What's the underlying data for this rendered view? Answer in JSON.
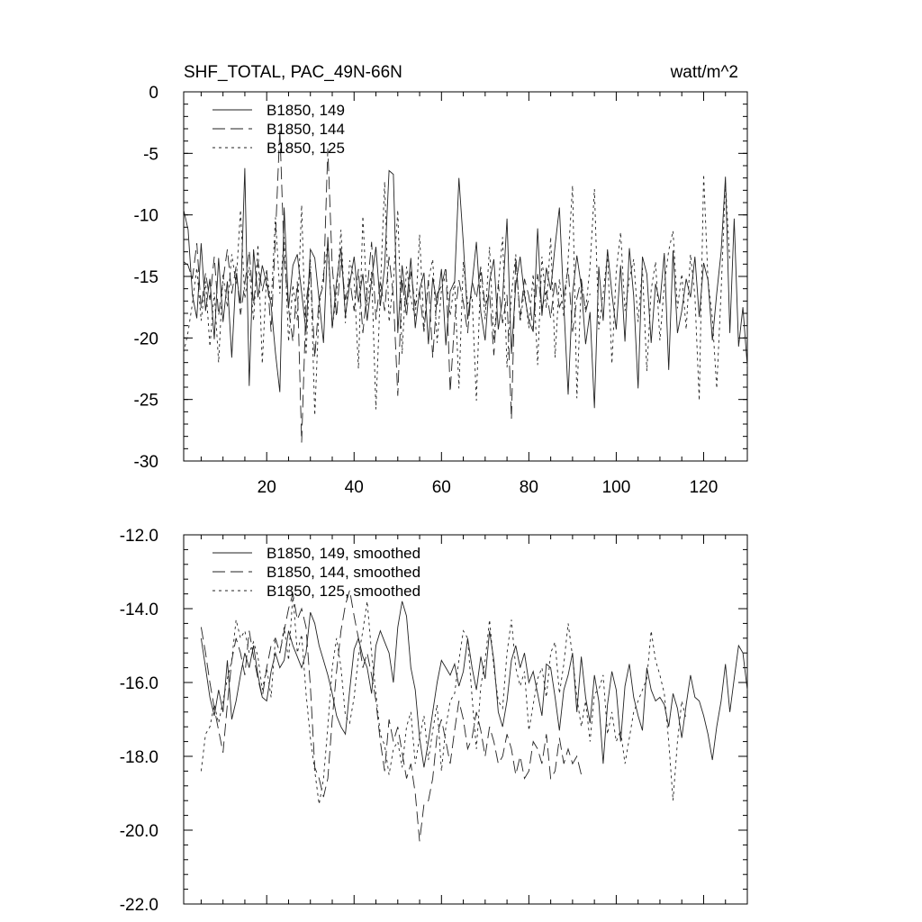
{
  "chart_data": [
    {
      "type": "line",
      "title": "SHF_TOTAL, PAC_49N-66N",
      "units": "watt/m^2",
      "xlim": [
        1,
        130
      ],
      "ylim": [
        -30,
        0
      ],
      "x_ticks": [
        20,
        40,
        60,
        80,
        100,
        120
      ],
      "y_ticks": [
        0,
        -5,
        -10,
        -15,
        -20,
        -25,
        -30
      ],
      "x_tick_labels": [
        "20",
        "40",
        "60",
        "80",
        "100",
        "120"
      ],
      "y_tick_labels": [
        "0",
        "-5",
        "-10",
        "-15",
        "-20",
        "-25",
        "-30"
      ],
      "legend_position": "top-left",
      "series": [
        {
          "name": "B1850, 149",
          "dash": "solid",
          "x_start": 1,
          "values": [
            -9.6,
            -11.2,
            -16.5,
            -18.4,
            -12.3,
            -17.8,
            -15.2,
            -20.1,
            -13.5,
            -18.7,
            -15.4,
            -21.6,
            -14.8,
            -17.2,
            -6.2,
            -23.9,
            -12.8,
            -16.7,
            -14.1,
            -15.6,
            -17.3,
            -21.2,
            -24.4,
            -9.4,
            -17.6,
            -14.1,
            -13.2,
            -16.3,
            -19.5,
            -12.8,
            -13.5,
            -16.9,
            -20.4,
            -11.8,
            -19.2,
            -15.4,
            -12.7,
            -18.2,
            -15.6,
            -13.4,
            -17.1,
            -14.8,
            -18.6,
            -15.3,
            -12.6,
            -17.4,
            -14.2,
            -6.4,
            -6.7,
            -19.6,
            -14.1,
            -17.3,
            -13.5,
            -19.2,
            -16.1,
            -14.7,
            -20.5,
            -15.1,
            -17.3,
            -14.4,
            -20.6,
            -16.2,
            -15.4,
            -7.0,
            -12.3,
            -18.5,
            -15.6,
            -12.2,
            -17.9,
            -20.2,
            -15.4,
            -13.6,
            -19.3,
            -16.8,
            -10.3,
            -21.3,
            -15.7,
            -13.4,
            -16.5,
            -18.6,
            -19.5,
            -11.1,
            -18.2,
            -14.3,
            -16.1,
            -12.5,
            -9.4,
            -17.3,
            -24.6,
            -16.4,
            -13.3,
            -15.8,
            -20.5,
            -17.9,
            -25.7,
            -14.2,
            -18.6,
            -12.8,
            -16.4,
            -19.3,
            -14.1,
            -20.3,
            -12.7,
            -16.6,
            -24.1,
            -13.4,
            -14.8,
            -20.4,
            -15.6,
            -17.2,
            -13.1,
            -22.6,
            -12.9,
            -19.6,
            -17.8,
            -15.2,
            -16.7,
            -13.4,
            -18.3,
            -13.9,
            -15.3,
            -20.2,
            -16.4,
            -13.0,
            -6.9,
            -19.6,
            -10.3,
            -20.7,
            -17.5,
            -22.3
          ]
        },
        {
          "name": "B1850, 144",
          "dash": "dash",
          "x_start": 1,
          "values": [
            -13.8,
            -14.1,
            -15.2,
            -12.3,
            -17.6,
            -14.7,
            -16.9,
            -13.4,
            -18.2,
            -15.3,
            -12.8,
            -16.4,
            -14.2,
            -18.1,
            -15.6,
            -12.9,
            -17.3,
            -13.8,
            -16.2,
            -14.5,
            -19.5,
            -11.8,
            -3.0,
            -13.5,
            -17.6,
            -20.3,
            -15.4,
            -28.5,
            -17.2,
            -14.3,
            -21.6,
            -16.8,
            -15.7,
            -4.6,
            -14.2,
            -18.3,
            -13.6,
            -16.9,
            -15.2,
            -17.8,
            -14.4,
            -19.6,
            -16.1,
            -12.2,
            -18.5,
            -15.3,
            -17.8,
            -13.4,
            -16.6,
            -24.7,
            -15.2,
            -18.3,
            -14.6,
            -17.4,
            -16.2,
            -19.5,
            -15.3,
            -21.6,
            -16.4,
            -15.8,
            -14.2,
            -24.4,
            -18.6,
            -15.3,
            -17.1,
            -19.6,
            -15.4,
            -16.8,
            -14.2,
            -17.5,
            -16.3,
            -21.4,
            -15.6,
            -18.8,
            -16.5,
            -26.6,
            -13.5,
            -18.3,
            -15.2,
            -16.6,
            -19.3,
            -14.8,
            -17.6,
            -16.2,
            -18.4,
            -15.3,
            -17.5,
            -16.6,
            -14.3,
            -19.5,
            -16.8,
            -15.2,
            -17.9,
            -16.4
          ]
        },
        {
          "name": "B1850, 125",
          "dash": "dot",
          "x_start": 1,
          "values": [
            -21.2,
            -19.5,
            -17.2,
            -14.3,
            -18.6,
            -15.4,
            -20.7,
            -16.3,
            -22.0,
            -14.8,
            -17.5,
            -13.2,
            -15.6,
            -9.6,
            -16.8,
            -14.2,
            -18.6,
            -12.4,
            -22.1,
            -14.7,
            -17.3,
            -10.2,
            -16.4,
            -11.8,
            -20.3,
            -15.7,
            -18.6,
            -9.2,
            -21.4,
            -13.6,
            -26.3,
            -17.5,
            -14.8,
            -12.3,
            -19.2,
            -16.4,
            -11.2,
            -18.8,
            -13.7,
            -15.2,
            -22.5,
            -10.1,
            -17.4,
            -14.6,
            -25.8,
            -16.2,
            -7.3,
            -18.7,
            -15.4,
            -9.6,
            -21.3,
            -14.2,
            -16.8,
            -18.4,
            -11.6,
            -19.2,
            -15.3,
            -13.6,
            -20.4,
            -16.1,
            -14.8,
            -18.2,
            -15.4,
            -24.1,
            -13.8,
            -17.2,
            -16.6,
            -25.1,
            -14.3,
            -18.5,
            -12.6,
            -20.2,
            -15.7,
            -11.8,
            -22.4,
            -16.5,
            -13.2,
            -18.7,
            -16.1,
            -19.2,
            -14.8,
            -22.2,
            -13.4,
            -17.6,
            -11.8,
            -21.6,
            -15.2,
            -18.3,
            -13.6,
            -7.6,
            -24.9,
            -15.4,
            -17.8,
            -14.2,
            -7.9,
            -19.3,
            -16.4,
            -13.2,
            -22.1,
            -14.6,
            -11.4,
            -17.8,
            -15.2,
            -13.6,
            -18.7,
            -14.3,
            -22.7,
            -16.1,
            -13.8,
            -20.2,
            -15.7,
            -12.9,
            -11.3,
            -17.6,
            -14.8,
            -19.3,
            -13.2,
            -16.6,
            -25.1,
            -6.7,
            -15.3,
            -18.4,
            -24.1,
            -16.2,
            -7.4,
            -13.8
          ]
        }
      ]
    },
    {
      "type": "line",
      "xlim": [
        1,
        130
      ],
      "ylim": [
        -22,
        -12
      ],
      "x_ticks": [
        20,
        40,
        60,
        80,
        100,
        120
      ],
      "y_ticks": [
        -12,
        -14,
        -16,
        -18,
        -20,
        -22
      ],
      "y_tick_labels": [
        "-12.0",
        "-14.0",
        "-16.0",
        "-18.0",
        "-20.0",
        "-22.0"
      ],
      "legend_position": "top-left",
      "series": [
        {
          "name": "B1850, 149, smoothed",
          "dash": "solid",
          "x_start": 5,
          "values": [
            -14.8,
            -15.6,
            -16.4,
            -16.9,
            -16.2,
            -16.8,
            -15.4,
            -17.0,
            -16.5,
            -15.8,
            -15.2,
            -15.6,
            -15.0,
            -15.8,
            -16.4,
            -16.5,
            -15.7,
            -15.2,
            -15.6,
            -15.4,
            -14.6,
            -15.0,
            -15.3,
            -15.6,
            -15.2,
            -14.1,
            -14.4,
            -15.0,
            -15.4,
            -15.8,
            -16.3,
            -16.9,
            -17.2,
            -17.4,
            -16.2,
            -15.1,
            -14.8,
            -15.3,
            -15.6,
            -16.3,
            -15.0,
            -14.6,
            -14.9,
            -15.2,
            -16.0,
            -14.5,
            -13.8,
            -14.2,
            -15.6,
            -16.2,
            -17.5,
            -18.3,
            -17.6,
            -16.8,
            -16.0,
            -15.4,
            -15.6,
            -15.8,
            -15.5,
            -16.1,
            -15.7,
            -14.8,
            -15.6,
            -16.2,
            -15.3,
            -15.9,
            -14.6,
            -15.4,
            -16.8,
            -17.2,
            -16.5,
            -15.4,
            -15.0,
            -15.6,
            -15.2,
            -16.0,
            -15.7,
            -16.3,
            -16.9,
            -15.5,
            -15.6,
            -16.4,
            -17.3,
            -16.2,
            -15.8,
            -15.2,
            -16.8,
            -15.3,
            -16.4,
            -17.1,
            -15.8,
            -16.5,
            -18.2,
            -16.6,
            -15.7,
            -16.2,
            -17.6,
            -16.1,
            -15.5,
            -16.4,
            -16.9,
            -17.3,
            -15.6,
            -16.2,
            -16.5,
            -16.4,
            -16.6,
            -17.2,
            -16.3,
            -16.7,
            -17.5,
            -16.6,
            -15.8,
            -16.4,
            -16.5,
            -16.9,
            -17.4,
            -18.1,
            -17.2,
            -16.5,
            -15.5,
            -16.8,
            -15.9,
            -15.0,
            -15.2,
            -16.2
          ]
        },
        {
          "name": "B1850, 144, smoothed",
          "dash": "dash",
          "x_start": 5,
          "values": [
            -14.5,
            -15.2,
            -16.0,
            -16.7,
            -17.3,
            -17.9,
            -16.6,
            -15.4,
            -14.8,
            -15.2,
            -15.8,
            -14.6,
            -15.3,
            -15.9,
            -16.4,
            -15.6,
            -15.0,
            -14.8,
            -15.2,
            -14.6,
            -14.0,
            -13.6,
            -14.3,
            -14.0,
            -14.5,
            -16.1,
            -18.3,
            -18.6,
            -19.1,
            -18.6,
            -17.0,
            -15.7,
            -14.6,
            -13.9,
            -13.5,
            -14.2,
            -14.8,
            -15.6,
            -15.2,
            -15.8,
            -16.5,
            -17.6,
            -18.4,
            -17.0,
            -17.6,
            -17.2,
            -17.9,
            -18.6,
            -18.2,
            -19.0,
            -20.3,
            -19.3,
            -19.2,
            -18.6,
            -17.4,
            -17.0,
            -17.6,
            -18.2,
            -17.3,
            -16.5,
            -17.0,
            -17.8,
            -17.5,
            -16.8,
            -17.3,
            -18.0,
            -17.2,
            -17.6,
            -18.2,
            -18.0,
            -17.4,
            -17.8,
            -18.5,
            -18.0,
            -18.6,
            -18.4,
            -17.6,
            -17.8,
            -18.2,
            -17.4,
            -18.6,
            -18.4,
            -17.5,
            -18.2,
            -17.8,
            -18.2,
            -18.0,
            -18.5
          ]
        },
        {
          "name": "B1850, 125, smoothed",
          "dash": "dot",
          "x_start": 5,
          "values": [
            -18.4,
            -17.4,
            -17.2,
            -16.6,
            -17.1,
            -16.5,
            -15.9,
            -15.4,
            -14.3,
            -14.8,
            -14.6,
            -15.2,
            -14.9,
            -15.3,
            -16.2,
            -15.6,
            -16.4,
            -14.8,
            -15.2,
            -14.5,
            -15.4,
            -13.6,
            -15.2,
            -14.7,
            -16.3,
            -17.5,
            -18.4,
            -19.3,
            -18.6,
            -17.2,
            -15.6,
            -14.8,
            -15.6,
            -16.9,
            -17.1,
            -16.4,
            -15.3,
            -14.6,
            -13.8,
            -15.2,
            -16.3,
            -17.4,
            -17.7,
            -18.5,
            -17.8,
            -17.6,
            -18.3,
            -17.2,
            -16.8,
            -18.2,
            -17.5,
            -16.9,
            -18.1,
            -17.3,
            -16.6,
            -18.4,
            -17.2,
            -16.5,
            -16.3,
            -15.4,
            -14.6,
            -14.8,
            -16.4,
            -17.8,
            -16.1,
            -15.4,
            -14.3,
            -15.6,
            -16.5,
            -16.7,
            -15.2,
            -14.3,
            -15.6,
            -16.1,
            -15.7,
            -17.3,
            -16.6,
            -15.9,
            -15.6,
            -16.4,
            -15.2,
            -14.9,
            -16.3,
            -15.5,
            -14.4,
            -15.3,
            -16.4,
            -17.2,
            -16.5,
            -17.6,
            -16.3,
            -16.2,
            -15.8,
            -17.4,
            -16.8,
            -17.6,
            -17.3,
            -18.2,
            -17.5,
            -16.8,
            -16.5,
            -16.2,
            -15.9,
            -14.6,
            -15.4,
            -15.8,
            -16.3,
            -17.6,
            -19.2,
            -17.6,
            -16.5,
            -17.0
          ]
        }
      ]
    }
  ]
}
